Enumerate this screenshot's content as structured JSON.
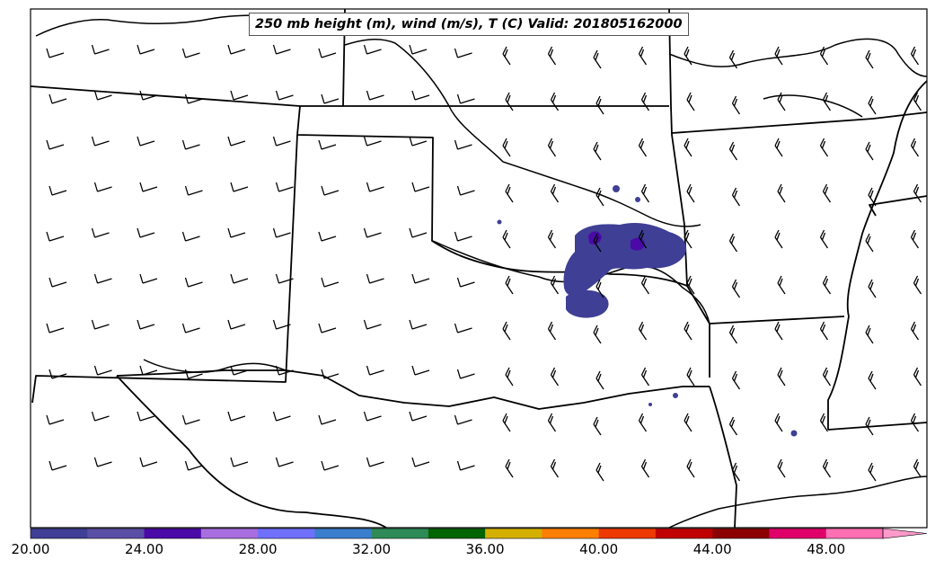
{
  "title": "250 mb height (m), wind (m/s), T (C) Valid: 201805162000",
  "colorbar": {
    "tick_labels": [
      "20.00",
      "24.00",
      "28.00",
      "32.00",
      "36.00",
      "40.00",
      "44.00",
      "48.00"
    ],
    "colors": [
      "#3f3f96",
      "#5a4fa6",
      "#4b09a8",
      "#a86ee0",
      "#7070ff",
      "#3a7fce",
      "#2e8b57",
      "#006400",
      "#d4b000",
      "#ff7f00",
      "#ee3a00",
      "#c00000",
      "#8b0000",
      "#e0006a",
      "#ff6fb4",
      "#ff9acb"
    ]
  },
  "shading": {
    "color": "#3f3f96",
    "dark_color": "#4b09a8"
  }
}
